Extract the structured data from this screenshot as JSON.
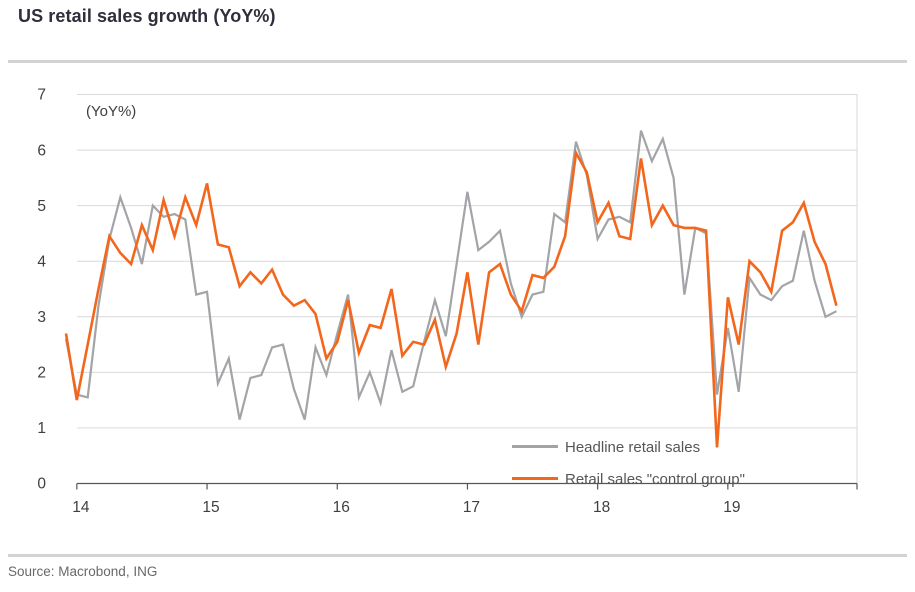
{
  "page": {
    "title": "US retail sales growth (YoY%)",
    "source": "Source: Macrobond, ING"
  },
  "chart_data": {
    "type": "line",
    "title": "US retail sales growth (YoY%)",
    "unit_annotation": "(YoY%)",
    "ylabel": "",
    "xlabel": "",
    "ylim": [
      0,
      7
    ],
    "y_ticks": [
      0,
      1,
      2,
      3,
      4,
      5,
      6,
      7
    ],
    "x_tick_labels": [
      "14",
      "15",
      "16",
      "17",
      "18",
      "19"
    ],
    "grid": "horizontal",
    "legend_position": "inside-bottom-right",
    "axis_color": "#55565a",
    "grid_color": "#d9d9d9",
    "x": [
      "2013-12",
      "2014-01",
      "2014-02",
      "2014-03",
      "2014-04",
      "2014-05",
      "2014-06",
      "2014-07",
      "2014-08",
      "2014-09",
      "2014-10",
      "2014-11",
      "2014-12",
      "2015-01",
      "2015-02",
      "2015-03",
      "2015-04",
      "2015-05",
      "2015-06",
      "2015-07",
      "2015-08",
      "2015-09",
      "2015-10",
      "2015-11",
      "2015-12",
      "2016-01",
      "2016-02",
      "2016-03",
      "2016-04",
      "2016-05",
      "2016-06",
      "2016-07",
      "2016-08",
      "2016-09",
      "2016-10",
      "2016-11",
      "2016-12",
      "2017-01",
      "2017-02",
      "2017-03",
      "2017-04",
      "2017-05",
      "2017-06",
      "2017-07",
      "2017-08",
      "2017-09",
      "2017-10",
      "2017-11",
      "2017-12",
      "2018-01",
      "2018-02",
      "2018-03",
      "2018-04",
      "2018-05",
      "2018-06",
      "2018-07",
      "2018-08",
      "2018-09",
      "2018-10",
      "2018-11",
      "2018-12",
      "2019-01",
      "2019-02",
      "2019-03",
      "2019-04",
      "2019-05",
      "2019-06",
      "2019-07",
      "2019-08",
      "2019-09",
      "2019-10",
      "2019-11"
    ],
    "series": [
      {
        "name": "Headline retail sales",
        "color": "#a2a4a7",
        "values": [
          2.6,
          1.6,
          1.55,
          3.2,
          4.4,
          5.15,
          4.6,
          3.95,
          5.0,
          4.8,
          4.85,
          4.75,
          3.4,
          3.45,
          1.8,
          2.25,
          1.15,
          1.9,
          1.95,
          2.45,
          2.5,
          1.7,
          1.15,
          2.45,
          1.95,
          2.7,
          3.4,
          1.55,
          2.0,
          1.45,
          2.4,
          1.65,
          1.75,
          2.55,
          3.3,
          2.65,
          3.95,
          5.25,
          4.2,
          4.35,
          4.55,
          3.6,
          3.0,
          3.4,
          3.45,
          4.85,
          4.7,
          6.15,
          5.55,
          4.4,
          4.75,
          4.8,
          4.7,
          6.35,
          5.8,
          6.2,
          5.5,
          3.4,
          4.6,
          4.5,
          1.6,
          2.8,
          1.65,
          3.7,
          3.4,
          3.3,
          3.55,
          3.65,
          4.55,
          3.65,
          3.0,
          3.1
        ]
      },
      {
        "name": "Retail sales \"control group\"",
        "color": "#f3671d",
        "values": [
          2.7,
          1.5,
          2.5,
          3.5,
          4.45,
          4.15,
          3.95,
          4.65,
          4.2,
          5.1,
          4.45,
          5.15,
          4.65,
          5.4,
          4.3,
          4.25,
          3.55,
          3.8,
          3.6,
          3.85,
          3.4,
          3.2,
          3.3,
          3.05,
          2.25,
          2.55,
          3.3,
          2.35,
          2.85,
          2.8,
          3.5,
          2.3,
          2.55,
          2.5,
          2.95,
          2.1,
          2.7,
          3.8,
          2.5,
          3.8,
          3.95,
          3.4,
          3.1,
          3.75,
          3.7,
          3.9,
          4.45,
          5.95,
          5.6,
          4.7,
          5.05,
          4.45,
          4.4,
          5.85,
          4.65,
          5.0,
          4.65,
          4.6,
          4.6,
          4.55,
          0.65,
          3.35,
          2.5,
          4.0,
          3.8,
          3.45,
          4.55,
          4.7,
          5.05,
          4.35,
          3.95,
          3.2
        ]
      }
    ]
  }
}
